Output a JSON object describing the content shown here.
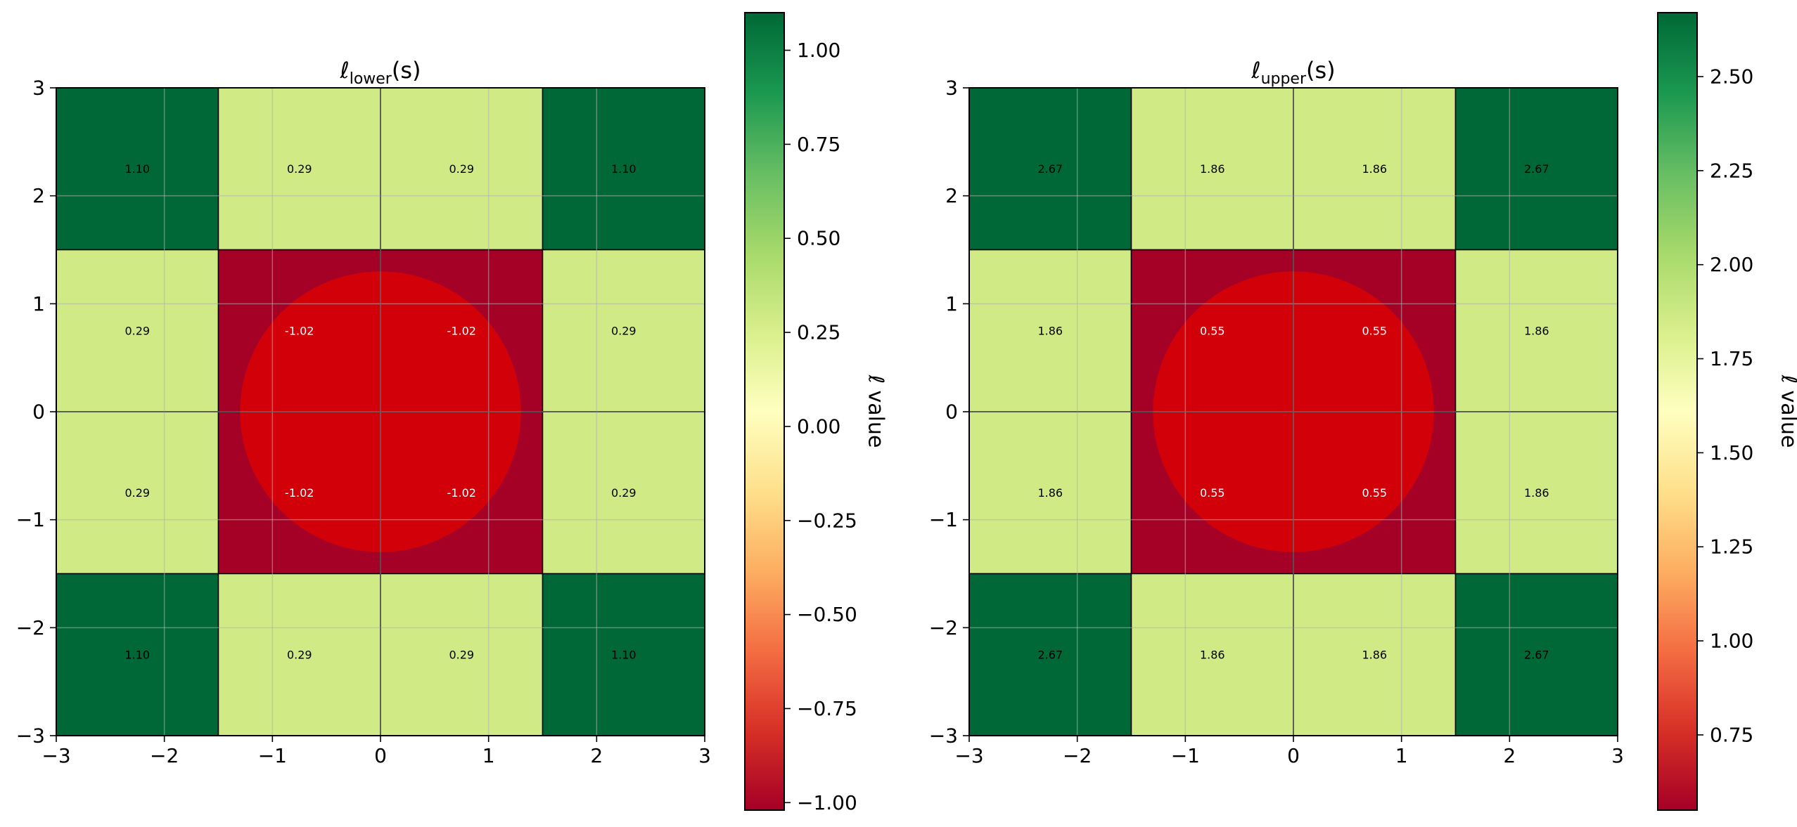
{
  "chart_data": [
    {
      "type": "heatmap",
      "title_main": "ℓ",
      "title_sub": "lower",
      "title_tail": "(s)",
      "x_edges": [
        -3,
        -1.5,
        0,
        1.5,
        3
      ],
      "y_edges": [
        -3,
        -1.5,
        0,
        1.5,
        3
      ],
      "values": [
        [
          1.1,
          0.29,
          0.29,
          1.1
        ],
        [
          0.29,
          -1.02,
          -1.02,
          0.29
        ],
        [
          0.29,
          -1.02,
          -1.02,
          0.29
        ],
        [
          1.1,
          0.29,
          0.29,
          1.1
        ]
      ],
      "cell_labels": [
        [
          "1.10",
          "0.29",
          "0.29",
          "1.10"
        ],
        [
          "0.29",
          "-1.02",
          "-1.02",
          "0.29"
        ],
        [
          "0.29",
          "-1.02",
          "-1.02",
          "0.29"
        ],
        [
          "1.10",
          "0.29",
          "0.29",
          "1.10"
        ]
      ],
      "xlim": [
        -3,
        3
      ],
      "ylim": [
        -3,
        3
      ],
      "xticks": [
        -3,
        -2,
        -1,
        0,
        1,
        2,
        3
      ],
      "yticks": [
        -3,
        -2,
        -1,
        0,
        1,
        2,
        3
      ],
      "xtick_labels": [
        "−3",
        "−2",
        "−1",
        "0",
        "1",
        "2",
        "3"
      ],
      "ytick_labels": [
        "−3",
        "−2",
        "−1",
        "0",
        "1",
        "2",
        "3"
      ],
      "circle": {
        "center": [
          0,
          0
        ],
        "radius": 1.3,
        "color": "#e00000"
      },
      "grid": true,
      "colormap": "RdYlGn",
      "colorbar": {
        "label": "ℓ value",
        "vmin": -1.02,
        "vmax": 1.1,
        "ticks": [
          -1.0,
          -0.75,
          -0.5,
          -0.25,
          0.0,
          0.25,
          0.5,
          0.75,
          1.0
        ],
        "tick_labels": [
          "−1.00",
          "−0.75",
          "−0.50",
          "−0.25",
          "0.00",
          "0.25",
          "0.50",
          "0.75",
          "1.00"
        ]
      }
    },
    {
      "type": "heatmap",
      "title_main": "ℓ",
      "title_sub": "upper",
      "title_tail": "(s)",
      "x_edges": [
        -3,
        -1.5,
        0,
        1.5,
        3
      ],
      "y_edges": [
        -3,
        -1.5,
        0,
        1.5,
        3
      ],
      "values": [
        [
          2.67,
          1.86,
          1.86,
          2.67
        ],
        [
          1.86,
          0.55,
          0.55,
          1.86
        ],
        [
          1.86,
          0.55,
          0.55,
          1.86
        ],
        [
          2.67,
          1.86,
          1.86,
          2.67
        ]
      ],
      "cell_labels": [
        [
          "2.67",
          "1.86",
          "1.86",
          "2.67"
        ],
        [
          "1.86",
          "0.55",
          "0.55",
          "1.86"
        ],
        [
          "1.86",
          "0.55",
          "0.55",
          "1.86"
        ],
        [
          "2.67",
          "1.86",
          "1.86",
          "2.67"
        ]
      ],
      "xlim": [
        -3,
        3
      ],
      "ylim": [
        -3,
        3
      ],
      "xticks": [
        -3,
        -2,
        -1,
        0,
        1,
        2,
        3
      ],
      "yticks": [
        -3,
        -2,
        -1,
        0,
        1,
        2,
        3
      ],
      "xtick_labels": [
        "−3",
        "−2",
        "−1",
        "0",
        "1",
        "2",
        "3"
      ],
      "ytick_labels": [
        "−3",
        "−2",
        "−1",
        "0",
        "1",
        "2",
        "3"
      ],
      "circle": {
        "center": [
          0,
          0
        ],
        "radius": 1.3,
        "color": "#e00000"
      },
      "grid": true,
      "colormap": "RdYlGn",
      "colorbar": {
        "label": "ℓ value",
        "vmin": 0.55,
        "vmax": 2.67,
        "ticks": [
          0.75,
          1.0,
          1.25,
          1.5,
          1.75,
          2.0,
          2.25,
          2.5
        ],
        "tick_labels": [
          "0.75",
          "1.00",
          "1.25",
          "1.50",
          "1.75",
          "2.00",
          "2.25",
          "2.50"
        ]
      }
    }
  ]
}
